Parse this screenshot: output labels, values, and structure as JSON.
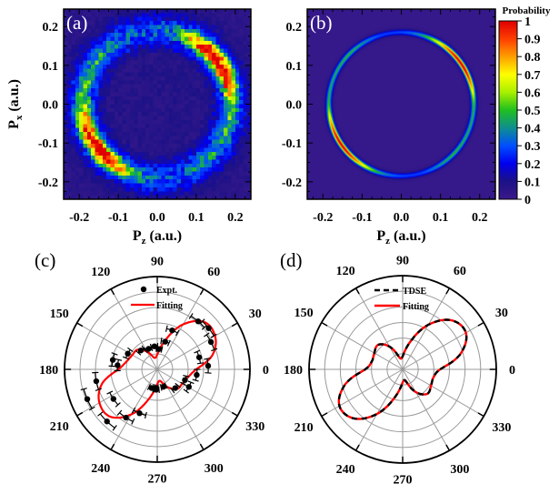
{
  "chart_data": [
    {
      "panel": "(a)",
      "type": "heatmap",
      "xlabel": {
        "symbol": "P",
        "subscript": "z",
        "unit": "(a.u.)"
      },
      "ylabel": {
        "symbol": "P",
        "subscript": "x",
        "unit": "(a.u.)"
      },
      "xlim": [
        -0.24,
        0.24
      ],
      "ylim": [
        -0.245,
        0.245
      ],
      "xticks": [
        {
          "v": -0.2,
          "label": "-0.2"
        },
        {
          "v": -0.1,
          "label": "-0.1"
        },
        {
          "v": 0.0,
          "label": "0.0"
        },
        {
          "v": 0.1,
          "label": "0.1"
        },
        {
          "v": 0.2,
          "label": "0.2"
        }
      ],
      "yticks": [
        {
          "v": -0.2,
          "label": "-0.2"
        },
        {
          "v": -0.1,
          "label": "-0.1"
        },
        {
          "v": 0.0,
          "label": "0.0"
        },
        {
          "v": 0.1,
          "label": "0.1"
        },
        {
          "v": 0.2,
          "label": "0.2"
        }
      ],
      "description_values": {
        "ring_radius": 0.19,
        "ring_width": 0.02,
        "bins": 48,
        "style": "experimental, noisy"
      },
      "angular_weights_from": "(c)"
    },
    {
      "panel": "(b)",
      "type": "heatmap",
      "xlabel": {
        "symbol": "P",
        "subscript": "z",
        "unit": "(a.u.)"
      },
      "xlim": [
        -0.24,
        0.24
      ],
      "ylim": [
        -0.245,
        0.245
      ],
      "xticks": [
        {
          "v": -0.2,
          "label": "-0.2"
        },
        {
          "v": -0.1,
          "label": "-0.1"
        },
        {
          "v": 0.0,
          "label": "0.0"
        },
        {
          "v": 0.1,
          "label": "0.1"
        },
        {
          "v": 0.2,
          "label": "0.2"
        }
      ],
      "yticks": [
        {
          "v": -0.2,
          "label": "-0.2"
        },
        {
          "v": -0.1,
          "label": "-0.1"
        },
        {
          "v": 0.0,
          "label": "0.0"
        },
        {
          "v": 0.1,
          "label": "0.1"
        },
        {
          "v": 0.2,
          "label": "0.2"
        }
      ],
      "description_values": {
        "ring_radius": 0.185,
        "ring_width": 0.007,
        "style": "simulated, smooth"
      },
      "angular_weights_from": "(d)",
      "colorbar": {
        "title": "Probability",
        "range": [
          0,
          1
        ],
        "ticks": [
          "0",
          "0.1",
          "0.2",
          "0.3",
          "0.4",
          "0.5",
          "0.6",
          "0.7",
          "0.8",
          "0.9",
          "1"
        ],
        "colormap": [
          "#3b1a8a",
          "#1c1187",
          "#0000f0",
          "#0050ff",
          "#0f8f8f",
          "#20c020",
          "#a8f000",
          "#ffff00",
          "#ffa000",
          "#ff4000",
          "#e00000"
        ]
      }
    },
    {
      "panel": "(c)",
      "type": "polar",
      "angle_ticks": [
        "0",
        "30",
        "60",
        "90",
        "120",
        "150",
        "180",
        "210",
        "240",
        "270",
        "300",
        "330"
      ],
      "radial_rings": 6,
      "rlim": [
        0,
        1
      ],
      "legend": [
        {
          "name": "Expt.",
          "marker": "dot",
          "color": "#000000"
        },
        {
          "name": "Fitting",
          "line": "solid",
          "color": "#ff0000"
        }
      ],
      "legend_placement": "top-center",
      "fitting": {
        "theta_deg": [
          0,
          15,
          30,
          45,
          60,
          75,
          90,
          105,
          120,
          135,
          150,
          165
        ],
        "r": [
          0.42,
          0.62,
          0.72,
          0.72,
          0.56,
          0.32,
          0.16,
          0.13,
          0.22,
          0.3,
          0.31,
          0.34
        ],
        "period_deg": 180
      },
      "expt": [
        {
          "theta": 49.6,
          "r": 0.68
        },
        {
          "theta": 38.7,
          "r": 0.71
        },
        {
          "theta": 27,
          "r": 0.65
        },
        {
          "theta": 16,
          "r": 0.47
        },
        {
          "theta": 4,
          "r": 0.55
        },
        {
          "theta": -8,
          "r": 0.43
        },
        {
          "theta": -21,
          "r": 0.32
        },
        {
          "theta": -29,
          "r": 0.39
        },
        {
          "theta": -46,
          "r": 0.28
        },
        {
          "theta": -70,
          "r": 0.2
        },
        {
          "theta": -93,
          "r": 0.22
        },
        {
          "theta": -107,
          "r": 0.21
        },
        {
          "theta": 69,
          "r": 0.45
        },
        {
          "theta": 74,
          "r": 0.31
        },
        {
          "theta": 97,
          "r": 0.25
        },
        {
          "theta": 113,
          "r": 0.24
        },
        {
          "theta": 131,
          "r": 0.27
        },
        {
          "theta": 152,
          "r": 0.36
        },
        {
          "theta": 168,
          "r": 0.49
        },
        {
          "theta": 174,
          "r": 0.43
        },
        {
          "theta": 191,
          "r": 0.67
        },
        {
          "theta": 203,
          "r": 0.82
        },
        {
          "theta": 214,
          "r": 0.57
        },
        {
          "theta": 226,
          "r": 0.78
        },
        {
          "theta": 237,
          "r": 0.62
        },
        {
          "theta": 248,
          "r": 0.51
        },
        {
          "theta": 85,
          "r": 0.22
        },
        {
          "theta": 265,
          "r": 0.2
        }
      ],
      "expt_error_deg": 8
    },
    {
      "panel": "(d)",
      "type": "polar",
      "angle_ticks": [
        "0",
        "30",
        "60",
        "90",
        "120",
        "150",
        "180",
        "210",
        "240",
        "270",
        "300",
        "330"
      ],
      "radial_rings": 6,
      "rlim": [
        0,
        1
      ],
      "legend": [
        {
          "name": "TDSE",
          "line": "dashed",
          "color": "#000000"
        },
        {
          "name": "Fitting",
          "line": "solid",
          "color": "#ff0000"
        }
      ],
      "legend_placement": "top-center",
      "curve": {
        "theta_deg": [
          0,
          15,
          30,
          45,
          60,
          75,
          90,
          105,
          120,
          135,
          150,
          165
        ],
        "r": [
          0.4,
          0.64,
          0.78,
          0.74,
          0.55,
          0.3,
          0.14,
          0.13,
          0.28,
          0.37,
          0.35,
          0.34
        ],
        "period_deg": 180
      }
    }
  ]
}
